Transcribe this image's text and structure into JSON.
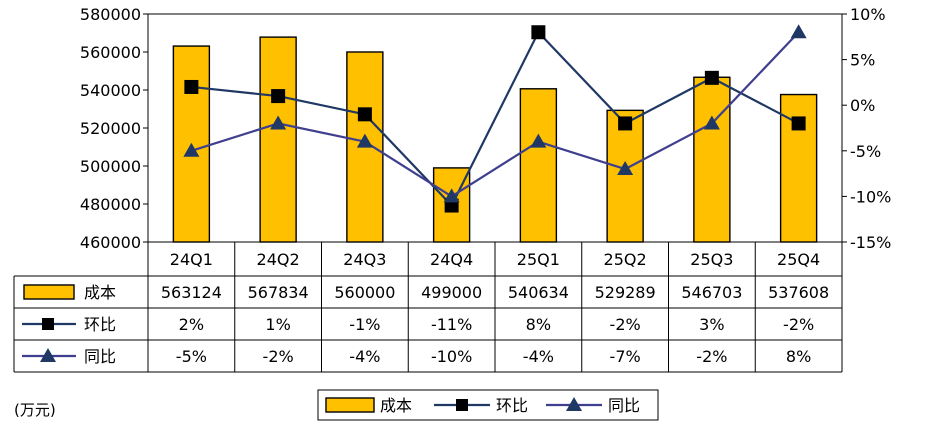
{
  "chart_data": {
    "type": "bar",
    "categories": [
      "24Q1",
      "24Q2",
      "24Q3",
      "24Q4",
      "25Q1",
      "25Q2",
      "25Q3",
      "25Q4"
    ],
    "ylim": [
      460000,
      580000
    ],
    "y_ticks": [
      "460000",
      "480000",
      "500000",
      "520000",
      "540000",
      "560000",
      "580000"
    ],
    "y2lim": [
      -15,
      10
    ],
    "y2_ticks": [
      "-15%",
      "-10%",
      "-5%",
      "0%",
      "5%",
      "10%"
    ],
    "unit_label": "(万元)",
    "grid": false,
    "series": [
      {
        "name": "成本",
        "kind": "bar",
        "color": "#FFC000",
        "values": [
          563124,
          567834,
          560000,
          499000,
          540634,
          529289,
          546703,
          537608
        ],
        "table_values": [
          "563124",
          "567834",
          "560000",
          "499000",
          "540634",
          "529289",
          "546703",
          "537608"
        ]
      },
      {
        "name": "环比",
        "kind": "line",
        "marker": "square",
        "color": "#1F3864",
        "values": [
          2,
          1,
          -1,
          -11,
          8,
          -2,
          3,
          -2
        ],
        "table_values": [
          "2%",
          "1%",
          "-1%",
          "-11%",
          "8%",
          "-2%",
          "3%",
          "-2%"
        ]
      },
      {
        "name": "同比",
        "kind": "line",
        "marker": "triangle",
        "color": "#3F3F8F",
        "marker_color": "#1F3864",
        "values": [
          -5,
          -2,
          -4,
          -10,
          -4,
          -7,
          -2,
          8
        ],
        "table_values": [
          "-5%",
          "-2%",
          "-4%",
          "-10%",
          "-4%",
          "-7%",
          "-2%",
          "8%"
        ]
      }
    ],
    "legend": {
      "placement": "bottom-center",
      "items": [
        "成本",
        "环比",
        "同比"
      ]
    }
  }
}
